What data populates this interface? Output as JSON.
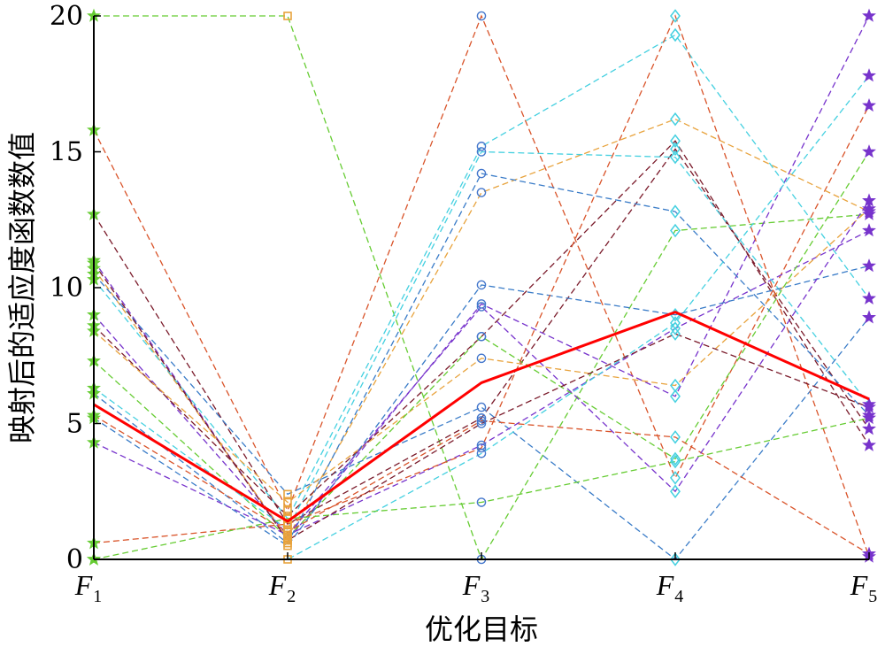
{
  "chart_data": {
    "type": "line",
    "subtype": "parallel-coordinates",
    "xlabel": "优化目标",
    "ylabel": "映射后的适应度函数数值",
    "ylim": [
      0,
      20
    ],
    "yticks": [
      0,
      5,
      10,
      15,
      20
    ],
    "categories": [
      {
        "main": "F",
        "sub": "1"
      },
      {
        "main": "F",
        "sub": "2"
      },
      {
        "main": "F",
        "sub": "3"
      },
      {
        "main": "F",
        "sub": "4"
      },
      {
        "main": "F",
        "sub": "5"
      }
    ],
    "grid": false,
    "legend": "none",
    "marker_colors": [
      "#66cc33",
      "#e8a33d",
      "#4477cc",
      "#44d0e0",
      "#7733cc"
    ],
    "marker_shapes": [
      "star",
      "square",
      "circle",
      "diamond",
      "star"
    ],
    "mean_line": {
      "values": [
        5.7,
        1.4,
        6.5,
        9.1,
        5.9
      ],
      "color": "#ff0000"
    },
    "series": [
      {
        "values": [
          20.0,
          20.0,
          0.0,
          12.1,
          12.7
        ],
        "color": "#66cc33"
      },
      {
        "values": [
          15.8,
          1.8,
          20.0,
          3.0,
          16.7
        ],
        "color": "#d9542a"
      },
      {
        "values": [
          12.7,
          1.3,
          5.2,
          15.1,
          4.8
        ],
        "color": "#7a1a2a"
      },
      {
        "values": [
          11.0,
          0.7,
          9.4,
          6.0,
          20.0
        ],
        "color": "#7733cc"
      },
      {
        "values": [
          10.7,
          0.8,
          13.5,
          16.2,
          12.8
        ],
        "color": "#e8a33d"
      },
      {
        "values": [
          10.5,
          2.4,
          5.6,
          0.0,
          8.9
        ],
        "color": "#3a7cc8"
      },
      {
        "values": [
          10.3,
          1.5,
          15.2,
          19.3,
          9.6
        ],
        "color": "#44d0e0"
      },
      {
        "values": [
          9.0,
          0.9,
          4.2,
          8.5,
          12.1
        ],
        "color": "#7733cc"
      },
      {
        "values": [
          8.6,
          1.6,
          8.2,
          15.4,
          4.2
        ],
        "color": "#7a1a2a"
      },
      {
        "values": [
          8.4,
          2.1,
          7.4,
          6.4,
          12.9
        ],
        "color": "#e8a33d"
      },
      {
        "values": [
          7.3,
          0.8,
          8.2,
          3.7,
          15.0
        ],
        "color": "#66cc33"
      },
      {
        "values": [
          6.3,
          1.1,
          15.0,
          14.8,
          5.7
        ],
        "color": "#44d0e0"
      },
      {
        "values": [
          6.1,
          0.6,
          14.2,
          12.8,
          5.3
        ],
        "color": "#3a7cc8"
      },
      {
        "values": [
          5.3,
          1.0,
          5.1,
          4.5,
          0.2
        ],
        "color": "#d9542a"
      },
      {
        "values": [
          5.2,
          0.5,
          10.1,
          9.0,
          10.8
        ],
        "color": "#3a7cc8"
      },
      {
        "values": [
          4.3,
          0.9,
          9.3,
          2.5,
          13.2
        ],
        "color": "#7733cc"
      },
      {
        "values": [
          0.6,
          1.3,
          4.1,
          20.0,
          0.1
        ],
        "color": "#d9542a"
      },
      {
        "values": [
          0.0,
          0.0,
          3.9,
          8.7,
          17.8
        ],
        "color": "#44d0e0"
      },
      {
        "values": [
          0.0,
          1.5,
          2.1,
          3.6,
          5.2
        ],
        "color": "#66cc33"
      },
      {
        "values": [
          10.9,
          0.7,
          5.0,
          8.3,
          5.6
        ],
        "color": "#7a1a2a"
      }
    ]
  }
}
